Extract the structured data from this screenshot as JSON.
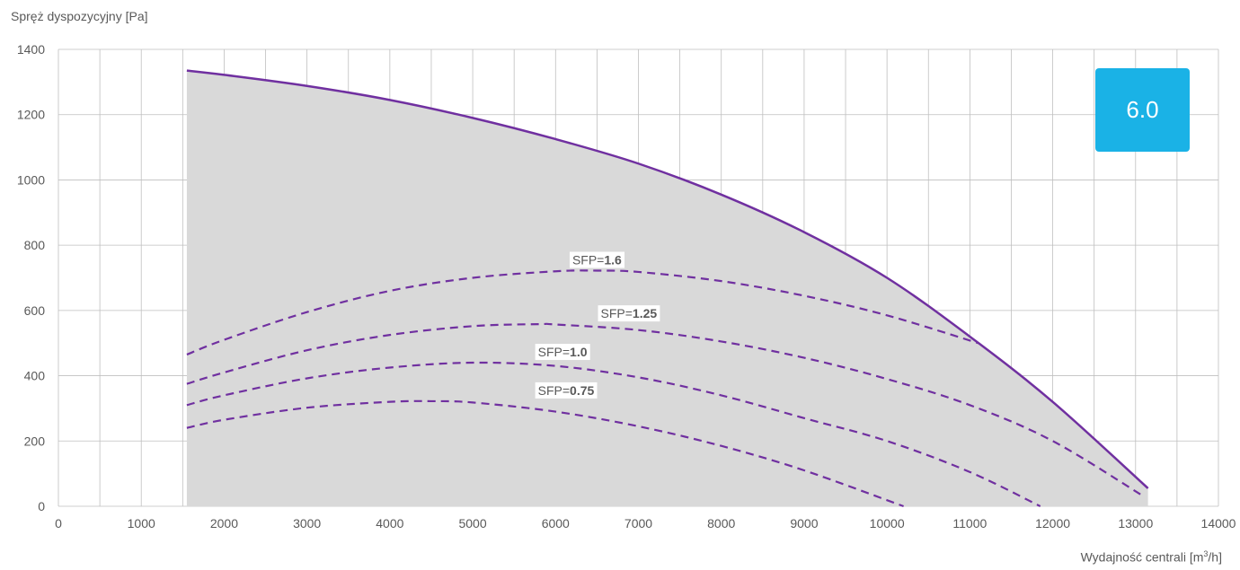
{
  "chart_data": {
    "type": "area",
    "title": "",
    "ylabel": "Spręż dyspozycyjny [Pa]",
    "xlabel_main": "Wydajność centrali [m",
    "xlabel_sup": "3",
    "xlabel_tail": "/h]",
    "xlim": [
      0,
      14000
    ],
    "ylim": [
      0,
      1400
    ],
    "x_ticks": [
      0,
      1000,
      2000,
      3000,
      4000,
      5000,
      6000,
      7000,
      8000,
      9000,
      10000,
      11000,
      12000,
      13000,
      14000
    ],
    "x_tick_labels": [
      "0",
      "1000",
      "2000",
      "3000",
      "4000",
      "5000",
      "6000",
      "7000",
      "8000",
      "9000",
      "10000",
      "11000",
      "12000",
      "13000",
      "14000"
    ],
    "y_ticks": [
      0,
      200,
      400,
      600,
      800,
      1000,
      1200,
      1400
    ],
    "y_tick_labels": [
      "0",
      "200",
      "400",
      "600",
      "800",
      "1000",
      "1200",
      "1400"
    ],
    "grid": true,
    "minor_x_grid_step": 500,
    "badge": "6.0",
    "colors": {
      "curve": "#7030a0",
      "area": "#d9d9d9",
      "grid": "#bfbfbf",
      "badge": "#1ab2e6"
    },
    "series": [
      {
        "name": "",
        "style": "solid",
        "x": [
          1550,
          2000,
          3000,
          4000,
          5000,
          6000,
          7000,
          8000,
          9000,
          10000,
          11000,
          12000,
          13150
        ],
        "y": [
          1335,
          1322,
          1288,
          1245,
          1190,
          1125,
          1050,
          955,
          840,
          700,
          520,
          320,
          55
        ]
      },
      {
        "name": "",
        "style": "dashed",
        "label_prefix": "SFP=",
        "label_value": "1.6",
        "x": [
          1550,
          2000,
          3000,
          4000,
          5000,
          6000,
          6500,
          7000,
          8000,
          9000,
          10000,
          11100
        ],
        "y": [
          465,
          510,
          595,
          660,
          700,
          720,
          722,
          718,
          690,
          645,
          585,
          500
        ]
      },
      {
        "name": "",
        "style": "dashed",
        "label_prefix": "SFP=",
        "label_value": "1.25",
        "x": [
          1550,
          2000,
          3000,
          4000,
          5000,
          5800,
          6000,
          7000,
          8000,
          9000,
          10000,
          11000,
          12000,
          13100
        ],
        "y": [
          375,
          410,
          478,
          525,
          552,
          558,
          557,
          540,
          505,
          455,
          390,
          310,
          200,
          30
        ]
      },
      {
        "name": "",
        "style": "dashed",
        "label_prefix": "SFP=",
        "label_value": "1.0",
        "x": [
          1550,
          2000,
          3000,
          4000,
          5000,
          6000,
          7000,
          8000,
          9000,
          10000,
          11000,
          11850
        ],
        "y": [
          310,
          340,
          392,
          425,
          440,
          430,
          395,
          340,
          270,
          200,
          105,
          0
        ]
      },
      {
        "name": "",
        "style": "dashed",
        "label_prefix": "SFP=",
        "label_value": "0.75",
        "x": [
          1550,
          2000,
          3000,
          4000,
          4500,
          5000,
          6000,
          7000,
          8000,
          9000,
          10200
        ],
        "y": [
          240,
          265,
          302,
          320,
          322,
          318,
          290,
          245,
          185,
          110,
          0
        ]
      }
    ]
  }
}
